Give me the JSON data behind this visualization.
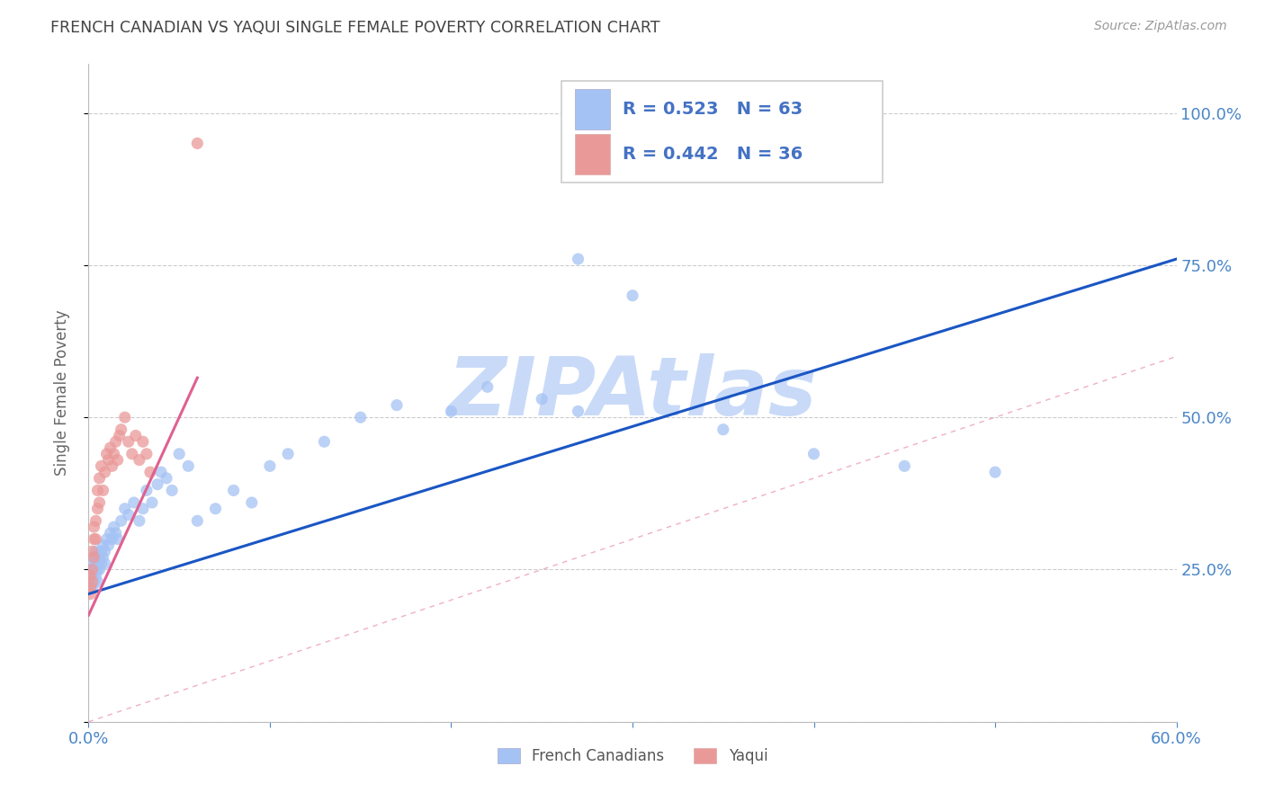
{
  "title": "FRENCH CANADIAN VS YAQUI SINGLE FEMALE POVERTY CORRELATION CHART",
  "source": "Source: ZipAtlas.com",
  "ylabel": "Single Female Poverty",
  "xlim": [
    0.0,
    0.6
  ],
  "ylim": [
    0.0,
    1.08
  ],
  "ytick_vals": [
    0.0,
    0.25,
    0.5,
    0.75,
    1.0
  ],
  "ytick_labs": [
    "",
    "25.0%",
    "50.0%",
    "75.0%",
    "100.0%"
  ],
  "xtick_vals": [
    0.0,
    0.1,
    0.2,
    0.3,
    0.4,
    0.5,
    0.6
  ],
  "xtick_labs": [
    "0.0%",
    "",
    "",
    "",
    "",
    "",
    "60.0%"
  ],
  "french_R": "0.523",
  "french_N": "63",
  "yaqui_R": "0.442",
  "yaqui_N": "36",
  "french_scatter_color": "#a4c2f4",
  "french_line_color": "#1a56c4",
  "yaqui_scatter_color": "#ea9999",
  "yaqui_line_color": "#e06090",
  "diagonal_color": "#e06090",
  "grid_color": "#cccccc",
  "title_color": "#434343",
  "source_color": "#999999",
  "tick_color": "#4a86c8",
  "ylabel_color": "#666666",
  "watermark_color": "#c9daf8",
  "legend_text_color": "#434343",
  "legend_r_color": "#4472c4",
  "legend_blue_label": "French Canadians",
  "legend_pink_label": "Yaqui",
  "bg_color": "#ffffff",
  "french_x": [
    0.001,
    0.001,
    0.001,
    0.002,
    0.002,
    0.002,
    0.003,
    0.003,
    0.003,
    0.004,
    0.004,
    0.004,
    0.005,
    0.005,
    0.005,
    0.006,
    0.006,
    0.007,
    0.007,
    0.008,
    0.008,
    0.009,
    0.009,
    0.01,
    0.011,
    0.012,
    0.013,
    0.014,
    0.015,
    0.016,
    0.018,
    0.02,
    0.022,
    0.025,
    0.028,
    0.03,
    0.032,
    0.035,
    0.038,
    0.04,
    0.043,
    0.046,
    0.05,
    0.055,
    0.06,
    0.07,
    0.08,
    0.09,
    0.1,
    0.11,
    0.13,
    0.15,
    0.17,
    0.2,
    0.22,
    0.25,
    0.27,
    0.3,
    0.35,
    0.4,
    0.45,
    0.5,
    0.27
  ],
  "french_y": [
    0.23,
    0.25,
    0.22,
    0.24,
    0.26,
    0.22,
    0.25,
    0.27,
    0.23,
    0.26,
    0.28,
    0.24,
    0.25,
    0.23,
    0.26,
    0.27,
    0.25,
    0.28,
    0.26,
    0.27,
    0.29,
    0.28,
    0.26,
    0.3,
    0.29,
    0.31,
    0.3,
    0.32,
    0.31,
    0.3,
    0.33,
    0.35,
    0.34,
    0.36,
    0.33,
    0.35,
    0.38,
    0.36,
    0.39,
    0.41,
    0.4,
    0.38,
    0.44,
    0.42,
    0.33,
    0.35,
    0.38,
    0.36,
    0.42,
    0.44,
    0.46,
    0.5,
    0.52,
    0.51,
    0.55,
    0.53,
    0.51,
    0.7,
    0.48,
    0.44,
    0.42,
    0.41,
    0.76
  ],
  "yaqui_x": [
    0.001,
    0.001,
    0.001,
    0.002,
    0.002,
    0.002,
    0.003,
    0.003,
    0.003,
    0.004,
    0.004,
    0.005,
    0.005,
    0.006,
    0.006,
    0.007,
    0.008,
    0.009,
    0.01,
    0.011,
    0.012,
    0.013,
    0.014,
    0.015,
    0.016,
    0.017,
    0.018,
    0.02,
    0.022,
    0.024,
    0.026,
    0.028,
    0.03,
    0.032,
    0.034,
    0.06
  ],
  "yaqui_y": [
    0.22,
    0.24,
    0.21,
    0.25,
    0.28,
    0.23,
    0.3,
    0.32,
    0.27,
    0.33,
    0.3,
    0.35,
    0.38,
    0.36,
    0.4,
    0.42,
    0.38,
    0.41,
    0.44,
    0.43,
    0.45,
    0.42,
    0.44,
    0.46,
    0.43,
    0.47,
    0.48,
    0.5,
    0.46,
    0.44,
    0.47,
    0.43,
    0.46,
    0.44,
    0.41,
    0.95
  ],
  "fc_line_x": [
    0.0,
    0.6
  ],
  "fc_line_y": [
    0.21,
    0.76
  ],
  "yq_line_x": [
    0.0,
    0.06
  ],
  "yq_line_y": [
    0.175,
    0.565
  ]
}
